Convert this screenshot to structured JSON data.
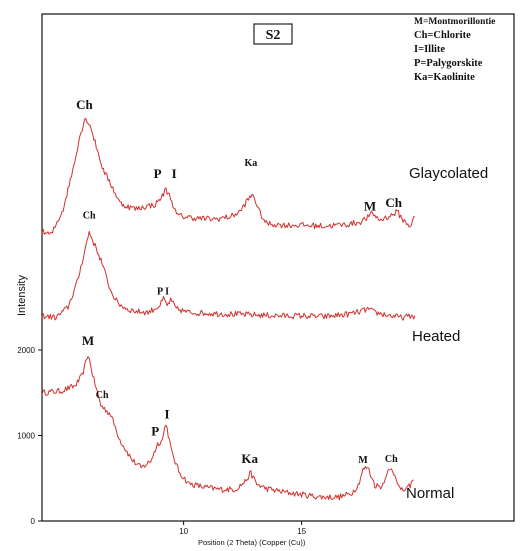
{
  "chart_data": {
    "type": "line",
    "sample_label": "S2",
    "xlabel": "Position (2 Theta) (Copper (Cu))",
    "ylabel": "Intensity",
    "xlim": [
      4,
      24
    ],
    "ylim": [
      0,
      4000
    ],
    "x_ticks": [
      10,
      15
    ],
    "y_ticks": [
      0,
      1000,
      2000
    ],
    "grid": false,
    "legend_position": "top-right",
    "legend": [
      "M=Montmorillontie",
      "Ch=Chlorite",
      "I=Illite",
      "P=Palygorskite",
      "Ka=Kaolinite"
    ],
    "series": [
      {
        "name": "Normal",
        "color": "#d0312d",
        "x": [
          4.0,
          4.8,
          5.4,
          5.7,
          5.95,
          6.2,
          6.5,
          6.9,
          7.3,
          7.8,
          8.2,
          8.6,
          8.9,
          9.1,
          9.25,
          9.5,
          9.8,
          10.2,
          10.8,
          11.5,
          12.2,
          12.6,
          12.85,
          13.1,
          13.5,
          14.2,
          15.0,
          15.8,
          16.6,
          17.1,
          17.4,
          17.6,
          17.8,
          18.1,
          18.4,
          18.6,
          18.8,
          19.0,
          19.2,
          19.5,
          19.75
        ],
        "values": [
          1500,
          1520,
          1580,
          1700,
          1950,
          1650,
          1350,
          1250,
          950,
          720,
          620,
          700,
          900,
          950,
          1150,
          800,
          580,
          440,
          400,
          370,
          370,
          460,
          560,
          430,
          380,
          340,
          310,
          280,
          280,
          320,
          420,
          600,
          630,
          420,
          400,
          560,
          600,
          520,
          350,
          380,
          480
        ]
      },
      {
        "name": "Heated",
        "color": "#d0312d",
        "x": [
          4.0,
          4.6,
          5.1,
          5.5,
          5.8,
          6.0,
          6.2,
          6.5,
          6.9,
          7.2,
          7.6,
          8.0,
          8.5,
          9.0,
          9.15,
          9.3,
          9.45,
          9.7,
          10.2,
          11.0,
          12.0,
          13.0,
          14.0,
          15.0,
          16.0,
          17.0,
          17.5,
          17.8,
          18.1,
          18.6,
          19.2,
          19.8
        ],
        "values": [
          2400,
          2380,
          2500,
          2800,
          3150,
          3380,
          3250,
          3050,
          2700,
          2550,
          2480,
          2450,
          2440,
          2520,
          2600,
          2520,
          2580,
          2480,
          2440,
          2430,
          2420,
          2410,
          2400,
          2400,
          2390,
          2420,
          2450,
          2480,
          2440,
          2410,
          2380,
          2400
        ]
      },
      {
        "name": "Glaycolated",
        "color": "#d0312d",
        "x": [
          4.0,
          4.4,
          4.9,
          5.3,
          5.6,
          5.85,
          6.05,
          6.3,
          6.6,
          6.9,
          7.3,
          7.6,
          8.0,
          8.4,
          8.8,
          9.1,
          9.25,
          9.45,
          9.7,
          10.0,
          10.6,
          11.3,
          12.0,
          12.4,
          12.7,
          12.95,
          13.2,
          13.5,
          14.2,
          15.0,
          16.0,
          17.0,
          17.5,
          17.8,
          18.0,
          18.3,
          18.6,
          18.85,
          19.05,
          19.3,
          19.6,
          19.8
        ],
        "values": [
          3380,
          3350,
          3650,
          4100,
          4500,
          4720,
          4620,
          4380,
          4100,
          3950,
          3720,
          3680,
          3650,
          3680,
          3700,
          3800,
          3880,
          3780,
          3580,
          3560,
          3540,
          3530,
          3560,
          3620,
          3750,
          3820,
          3620,
          3480,
          3460,
          3460,
          3450,
          3470,
          3500,
          3550,
          3600,
          3520,
          3550,
          3580,
          3620,
          3520,
          3450,
          3560
        ]
      }
    ],
    "peak_labels": [
      {
        "text": "M",
        "x": 5.95,
        "y": 2060,
        "size": "large"
      },
      {
        "text": "Ch",
        "x": 6.55,
        "y": 1440,
        "size": "small"
      },
      {
        "text": "P",
        "x": 8.8,
        "y": 1000,
        "size": "large"
      },
      {
        "text": "I",
        "x": 9.3,
        "y": 1200,
        "size": "large"
      },
      {
        "text": "Ka",
        "x": 12.8,
        "y": 680,
        "size": "large"
      },
      {
        "text": "M",
        "x": 17.6,
        "y": 680,
        "size": "small"
      },
      {
        "text": "Ch",
        "x": 18.8,
        "y": 690,
        "size": "small"
      },
      {
        "text": "Ch",
        "x": 6.0,
        "y": 3540,
        "size": "small"
      },
      {
        "text": "P",
        "x": 9.0,
        "y": 2650,
        "size": "small"
      },
      {
        "text": "I",
        "x": 9.3,
        "y": 2650,
        "size": "small"
      },
      {
        "text": "Ch",
        "x": 5.8,
        "y": 4820,
        "size": "large"
      },
      {
        "text": "P",
        "x": 8.9,
        "y": 4010,
        "size": "large"
      },
      {
        "text": "I",
        "x": 9.6,
        "y": 4010,
        "size": "large"
      },
      {
        "text": "Ka",
        "x": 12.85,
        "y": 4150,
        "size": "small"
      },
      {
        "text": "M",
        "x": 17.9,
        "y": 3630,
        "size": "large"
      },
      {
        "text": "Ch",
        "x": 18.9,
        "y": 3670,
        "size": "large"
      }
    ]
  }
}
